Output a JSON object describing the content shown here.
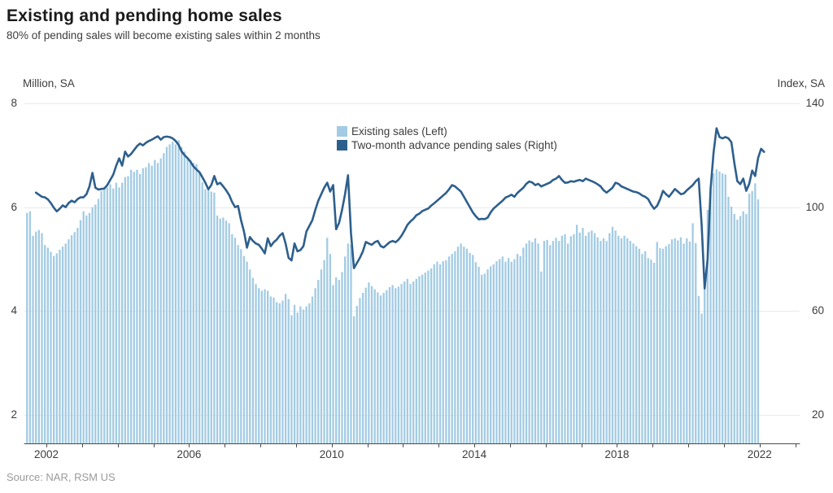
{
  "header": {
    "title": "Existing and pending home sales",
    "subtitle": "80% of pending sales will become existing sales within 2 months"
  },
  "axes": {
    "left": {
      "unit": "Million, SA",
      "ticks": [
        8,
        6,
        4,
        2
      ]
    },
    "right": {
      "unit": "Index, SA",
      "ticks": [
        140,
        100,
        60,
        20
      ]
    },
    "x": {
      "labeled_years": [
        2002,
        2006,
        2010,
        2014,
        2018,
        2022
      ]
    }
  },
  "legend": [
    {
      "label": "Existing sales (Left)",
      "color": "#a3cbe3"
    },
    {
      "label": "Two-month advance pending sales (Right)",
      "color": "#2d5f8d"
    }
  ],
  "source": "Source: NAR, RSM US",
  "colors": {
    "bars": "#a3cbe3",
    "line": "#2d5f8d",
    "grid": "#e9e9e9",
    "axis": "#4a4a4a"
  },
  "chart_data": {
    "type": "bar",
    "title": "Existing and pending home sales",
    "subtitle": "80% of pending sales will become existing sales within 2 months",
    "xlabel": "",
    "ylabel_left": "Million, SA",
    "ylabel_right": "Index, SA",
    "left_axis": {
      "gridlines": [
        8,
        6,
        4,
        2
      ],
      "range_bottom": 1.45,
      "range_top": 8.25
    },
    "right_axis": {
      "gridlines": [
        140,
        100,
        60,
        20
      ]
    },
    "x_axis": {
      "labeled_years": [
        2002,
        2006,
        2010,
        2014,
        2018,
        2022
      ],
      "minor_tick_every_year": true,
      "first_tick_year": 2002,
      "last_tick_year": 2023
    },
    "legend_position": "top-center",
    "grid": "horizontal-only",
    "series": [
      {
        "name": "Existing sales (Left)",
        "type": "bar",
        "axis": "left",
        "units": "millions, SAAR",
        "color": "#a3cbe3",
        "start": "2001-06",
        "freq": "monthly",
        "values": [
          5.89,
          5.92,
          5.45,
          5.53,
          5.56,
          5.5,
          5.27,
          5.22,
          5.14,
          5.06,
          5.11,
          5.18,
          5.24,
          5.3,
          5.38,
          5.46,
          5.52,
          5.6,
          5.75,
          5.92,
          5.84,
          5.89,
          6.0,
          6.05,
          6.16,
          6.31,
          6.36,
          6.38,
          6.44,
          6.36,
          6.47,
          6.38,
          6.47,
          6.58,
          6.6,
          6.72,
          6.68,
          6.72,
          6.64,
          6.75,
          6.77,
          6.85,
          6.8,
          6.91,
          6.85,
          6.94,
          7.04,
          7.16,
          7.21,
          7.26,
          7.21,
          7.29,
          7.16,
          7.07,
          6.94,
          6.91,
          6.85,
          6.83,
          6.68,
          6.48,
          6.35,
          6.33,
          6.3,
          6.28,
          5.84,
          5.78,
          5.8,
          5.74,
          5.69,
          5.48,
          5.41,
          5.27,
          5.19,
          5.06,
          4.95,
          4.8,
          4.64,
          4.52,
          4.44,
          4.39,
          4.42,
          4.39,
          4.28,
          4.26,
          4.17,
          4.15,
          4.2,
          4.33,
          4.23,
          3.92,
          4.12,
          3.97,
          4.09,
          4.03,
          4.09,
          4.15,
          4.28,
          4.44,
          4.6,
          4.8,
          4.98,
          5.41,
          5.1,
          4.5,
          4.65,
          4.6,
          4.75,
          5.05,
          5.3,
          5.28,
          3.9,
          4.1,
          4.25,
          4.35,
          4.45,
          4.55,
          4.48,
          4.42,
          4.36,
          4.3,
          4.35,
          4.4,
          4.46,
          4.5,
          4.44,
          4.47,
          4.52,
          4.57,
          4.62,
          4.52,
          4.57,
          4.62,
          4.67,
          4.7,
          4.74,
          4.78,
          4.82,
          4.9,
          4.95,
          4.9,
          4.96,
          4.98,
          5.05,
          5.1,
          5.15,
          5.24,
          5.3,
          5.24,
          5.2,
          5.12,
          5.08,
          4.94,
          4.85,
          4.7,
          4.72,
          4.8,
          4.86,
          4.9,
          4.96,
          5.0,
          5.05,
          4.95,
          5.02,
          4.95,
          5.0,
          5.1,
          5.06,
          5.22,
          5.3,
          5.36,
          5.33,
          5.4,
          5.3,
          4.76,
          5.35,
          5.37,
          5.27,
          5.35,
          5.41,
          5.35,
          5.45,
          5.48,
          5.3,
          5.44,
          5.48,
          5.66,
          5.51,
          5.6,
          5.45,
          5.52,
          5.55,
          5.5,
          5.42,
          5.35,
          5.4,
          5.35,
          5.5,
          5.62,
          5.55,
          5.45,
          5.4,
          5.45,
          5.4,
          5.35,
          5.3,
          5.25,
          5.2,
          5.1,
          5.15,
          5.02,
          4.99,
          4.93,
          5.33,
          5.21,
          5.2,
          5.25,
          5.29,
          5.38,
          5.4,
          5.36,
          5.42,
          5.3,
          5.4,
          5.34,
          5.69,
          5.31,
          4.29,
          3.95,
          4.53,
          5.95,
          6.3,
          6.65,
          6.73,
          6.69,
          6.65,
          6.63,
          6.2,
          6.01,
          5.87,
          5.76,
          5.83,
          5.92,
          5.87,
          6.26,
          6.31,
          6.46,
          6.15
        ]
      },
      {
        "name": "Two-month advance pending sales (Right)",
        "type": "line",
        "axis": "right",
        "units": "index, SA",
        "color": "#2d5f8d",
        "start": "2001-09",
        "freq": "monthly",
        "values": [
          105.6,
          104.8,
          104.0,
          103.8,
          103.0,
          101.6,
          99.8,
          98.4,
          99.4,
          100.7,
          100.0,
          101.6,
          102.5,
          101.9,
          103.1,
          103.8,
          103.8,
          105.0,
          108.0,
          113.2,
          107.5,
          106.8,
          107.0,
          107.2,
          108.5,
          110.5,
          112.5,
          116.0,
          118.8,
          116.0,
          121.4,
          119.5,
          120.5,
          122.0,
          123.5,
          124.5,
          123.8,
          124.8,
          125.5,
          126.0,
          126.7,
          127.3,
          126.0,
          127.0,
          127.2,
          127.0,
          126.5,
          125.5,
          124.0,
          121.5,
          120.0,
          118.9,
          117.5,
          115.7,
          114.5,
          113.5,
          111.5,
          109.4,
          106.9,
          108.5,
          112.0,
          108.8,
          109.4,
          108.0,
          106.5,
          104.7,
          102.0,
          100.0,
          100.5,
          95.0,
          90.6,
          84.4,
          88.5,
          87.0,
          86.0,
          85.5,
          84.0,
          82.2,
          88.0,
          85.0,
          86.5,
          87.5,
          89.0,
          90.0,
          86.0,
          80.5,
          79.5,
          86.0,
          83.0,
          83.5,
          85.0,
          90.6,
          92.8,
          95.0,
          99.0,
          102.5,
          105.0,
          107.5,
          109.4,
          106.0,
          108.5,
          91.5,
          94.0,
          99.0,
          105.0,
          112.3,
          90.0,
          76.5,
          78.5,
          80.5,
          83.0,
          86.6,
          86.0,
          85.5,
          86.5,
          87.0,
          85.0,
          84.5,
          85.5,
          86.5,
          87.0,
          86.5,
          87.5,
          89.0,
          91.0,
          93.2,
          94.5,
          95.5,
          96.9,
          97.5,
          98.5,
          99.0,
          99.5,
          100.6,
          101.5,
          102.5,
          103.5,
          104.5,
          105.5,
          106.9,
          108.5,
          108.0,
          107.0,
          106.0,
          104.0,
          102.0,
          100.0,
          98.0,
          96.5,
          95.3,
          95.5,
          95.4,
          96.0,
          98.0,
          99.5,
          100.5,
          101.5,
          102.5,
          103.7,
          104.2,
          104.8,
          104.0,
          105.5,
          106.5,
          107.5,
          109.0,
          109.9,
          109.5,
          108.5,
          109.0,
          108.0,
          108.5,
          109.0,
          109.5,
          110.5,
          111.0,
          112.0,
          110.5,
          109.4,
          109.5,
          110.0,
          109.8,
          110.2,
          110.5,
          110.0,
          111.0,
          110.5,
          110.0,
          109.5,
          108.8,
          108.0,
          106.5,
          105.6,
          106.5,
          107.5,
          109.4,
          109.0,
          108.0,
          107.5,
          107.0,
          106.5,
          106.0,
          105.8,
          105.3,
          104.5,
          104.0,
          103.1,
          101.0,
          99.4,
          100.5,
          103.0,
          106.3,
          105.0,
          104.0,
          105.5,
          107.0,
          106.0,
          105.0,
          105.3,
          106.5,
          107.5,
          108.5,
          110.0,
          111.0,
          93.0,
          68.7,
          80.0,
          107.0,
          121.0,
          130.4,
          127.0,
          126.5,
          127.0,
          126.5,
          125.0,
          117.0,
          110.0,
          108.9,
          111.0,
          106.3,
          109.0,
          114.1,
          112.0,
          119.0,
          122.5,
          121.3
        ]
      }
    ]
  }
}
